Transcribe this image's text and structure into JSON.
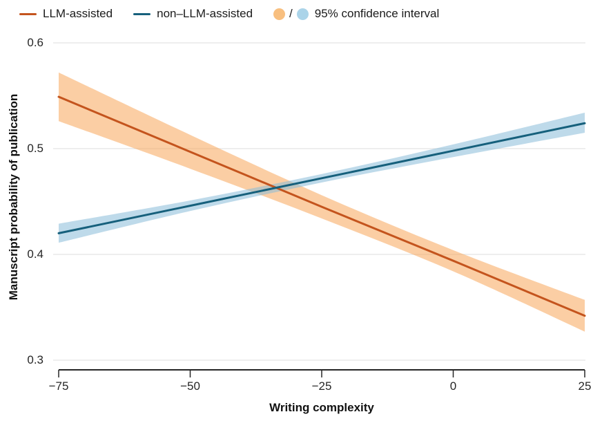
{
  "legend": {
    "separator": "/",
    "ci_swatch_colors": [
      "#f8bf7f",
      "#abd4e9"
    ]
  },
  "chart_data": {
    "type": "line",
    "title": "",
    "xlabel": "Writing complexity",
    "ylabel": "Manuscript probability of publication",
    "xlim": [
      -75,
      25
    ],
    "ylim": [
      0.3,
      0.6
    ],
    "grid": "horizontal-only",
    "legend_position": "top",
    "ci_label": "95% confidence interval",
    "x": [
      -75,
      -50,
      -25,
      0,
      25
    ],
    "xtick_values": [
      -75,
      -50,
      -25,
      0,
      25
    ],
    "xtick_labels": [
      "−75",
      "−50",
      "−25",
      "0",
      "25"
    ],
    "ytick_values": [
      0.6,
      0.5,
      0.4,
      0.3
    ],
    "ytick_labels": [
      "0.6",
      "0.5",
      "0.4",
      "0.3"
    ],
    "series": [
      {
        "name": "LLM-assisted",
        "line_color": "#c4541d",
        "band_color": "rgba(247,166,89,0.55)",
        "values": [
          0.549,
          0.497,
          0.445,
          0.394,
          0.342
        ],
        "ci_upper": [
          0.572,
          0.513,
          0.456,
          0.404,
          0.357
        ],
        "ci_lower": [
          0.526,
          0.481,
          0.434,
          0.384,
          0.327
        ]
      },
      {
        "name": "non–LLM-assisted",
        "line_color": "#16607c",
        "band_color": "rgba(137,187,217,0.55)",
        "values": [
          0.42,
          0.446,
          0.472,
          0.498,
          0.524
        ],
        "ci_upper": [
          0.429,
          0.451,
          0.476,
          0.504,
          0.534
        ],
        "ci_lower": [
          0.411,
          0.441,
          0.468,
          0.492,
          0.515
        ]
      }
    ]
  }
}
